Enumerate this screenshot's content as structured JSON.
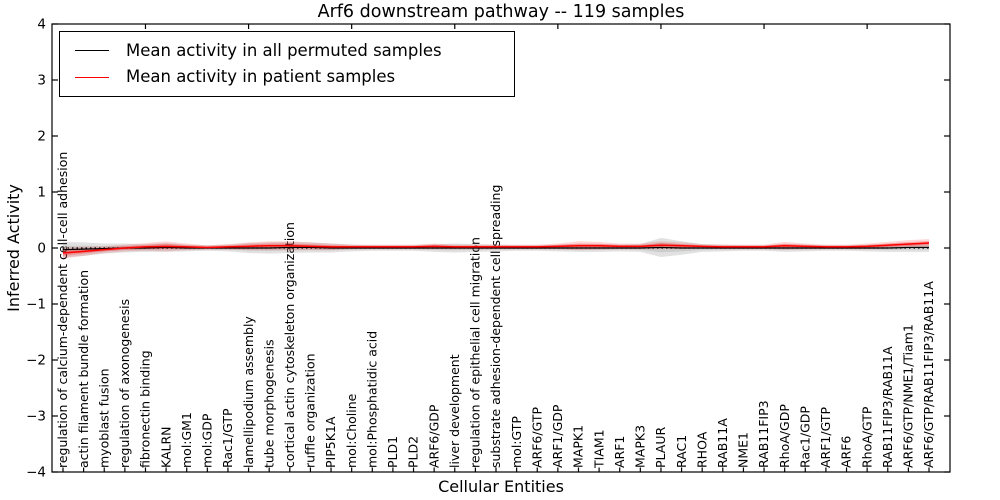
{
  "title": "Arf6 downstream pathway -- 119 samples",
  "axes": {
    "y_label": "Inferred Activity",
    "x_label": "Cellular Entities",
    "y_ticks": [
      "4",
      "3",
      "2",
      "1",
      "0",
      "−1",
      "−2",
      "−3",
      "−4"
    ]
  },
  "legend": {
    "items": [
      {
        "label": "Mean activity in all permuted samples",
        "color": "#000000"
      },
      {
        "label": "Mean activity in patient samples",
        "color": "#ff0000"
      }
    ]
  },
  "chart_data": {
    "type": "line",
    "title": "Arf6 downstream pathway -- 119 samples",
    "xlabel": "Cellular Entities",
    "ylabel": "Inferred Activity",
    "ylim": [
      -4,
      4
    ],
    "grid": false,
    "legend_position": "upper left",
    "x_tick_rotation": 90,
    "categories": [
      "regulation of calcium-dependent cell-cell adhesion",
      "actin filament bundle formation",
      "myoblast fusion",
      "regulation of axonogenesis",
      "fibronectin binding",
      "KALRN",
      "mol:GM1",
      "mol:GDP",
      "Rac1/GTP",
      "lamellipodium assembly",
      "tube morphogenesis",
      "cortical actin cytoskeleton organization",
      "ruffle organization",
      "PIP5K1A",
      "mol:Choline",
      "mol:Phosphatidic acid",
      "PLD1",
      "PLD2",
      "ARF6/GDP",
      "liver development",
      "regulation of epithelial cell migration",
      "substrate adhesion-dependent cell spreading",
      "mol:GTP",
      "ARF6/GTP",
      "ARF1/GDP",
      "MAPK1",
      "TIAM1",
      "ARF1",
      "MAPK3",
      "PLAUR",
      "RAC1",
      "RHOA",
      "RAB11A",
      "NME1",
      "RAB11FIP3",
      "RhoA/GDP",
      "Rac1/GDP",
      "ARF1/GTP",
      "ARF6",
      "RhoA/GTP",
      "RAB11FIP3/RAB11A",
      "ARF6/GTP/NME1/Tiam1",
      "ARF6/GTP/RAB11FIP3/RAB11A"
    ],
    "series": [
      {
        "name": "Mean activity in all permuted samples",
        "color": "#000000",
        "values": [
          -0.03,
          -0.02,
          -0.01,
          0,
          0,
          0.01,
          0,
          0,
          0,
          0,
          0,
          0.01,
          0.01,
          0,
          0,
          0,
          0,
          0,
          0,
          0,
          0,
          0,
          0,
          0,
          0,
          0,
          0,
          0,
          0,
          0.01,
          0,
          0,
          0,
          0,
          0,
          0,
          0,
          0,
          0,
          0,
          0,
          0.01,
          0.01
        ]
      },
      {
        "name": "Mean activity in patient samples",
        "color": "#ff0000",
        "values": [
          -0.09,
          -0.06,
          -0.03,
          0,
          0.02,
          0.03,
          0.02,
          0.01,
          0.02,
          0.03,
          0.04,
          0.04,
          0.03,
          0.02,
          0.02,
          0.02,
          0.02,
          0.02,
          0.03,
          0.02,
          0.02,
          0.02,
          0.02,
          0.02,
          0.03,
          0.04,
          0.04,
          0.03,
          0.03,
          0.05,
          0.04,
          0.03,
          0.02,
          0.02,
          0.02,
          0.04,
          0.03,
          0.02,
          0.02,
          0.03,
          0.05,
          0.07,
          0.09
        ]
      }
    ],
    "bands": [
      {
        "name": "permuted-samples-range",
        "color": "#777777",
        "centered_on": "Mean activity in all permuted samples",
        "half_widths": [
          0.14,
          0.12,
          0.09,
          0.08,
          0.07,
          0.08,
          0.06,
          0.05,
          0.06,
          0.09,
          0.1,
          0.1,
          0.09,
          0.08,
          0.06,
          0.05,
          0.05,
          0.05,
          0.07,
          0.08,
          0.07,
          0.06,
          0.05,
          0.05,
          0.06,
          0.07,
          0.07,
          0.06,
          0.07,
          0.17,
          0.12,
          0.07,
          0.06,
          0.05,
          0.05,
          0.07,
          0.06,
          0.05,
          0.05,
          0.06,
          0.07,
          0.08,
          0.08
        ]
      },
      {
        "name": "patient-samples-range",
        "color": "#ff0000",
        "centered_on": "Mean activity in patient samples",
        "half_widths": [
          0.1,
          0.08,
          0.06,
          0.06,
          0.07,
          0.09,
          0.06,
          0.04,
          0.05,
          0.07,
          0.08,
          0.08,
          0.07,
          0.06,
          0.04,
          0.04,
          0.04,
          0.04,
          0.05,
          0.04,
          0.04,
          0.04,
          0.04,
          0.04,
          0.05,
          0.08,
          0.07,
          0.05,
          0.05,
          0.07,
          0.06,
          0.04,
          0.04,
          0.04,
          0.04,
          0.07,
          0.05,
          0.04,
          0.04,
          0.05,
          0.06,
          0.07,
          0.07
        ]
      }
    ],
    "zero_line": {
      "y": 0,
      "style": "dotted",
      "color": "#000000"
    }
  }
}
